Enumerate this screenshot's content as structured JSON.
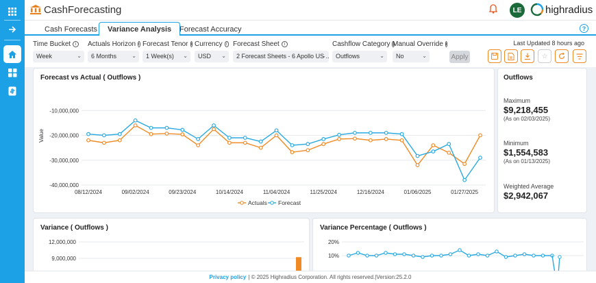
{
  "app": {
    "title": "CashForecasting"
  },
  "user": {
    "initials": "LE"
  },
  "brand": {
    "name": "highradius"
  },
  "tabs": [
    {
      "label": "Cash Forecasts"
    },
    {
      "label": "Variance Analysis"
    },
    {
      "label": "Forecast Accuracy"
    }
  ],
  "filters": {
    "time_bucket": {
      "label": "Time Bucket",
      "value": "Week"
    },
    "actuals_horizon": {
      "label": "Actuals Horizon",
      "value": "6 Months"
    },
    "forecast_tenor": {
      "label": "Forecast Tenor",
      "value": "1 Week(s)"
    },
    "currency": {
      "label": "Currency",
      "value": "USD"
    },
    "forecast_sheet": {
      "label": "Forecast Sheet",
      "value": "2 Forecast Sheets - 6 Apollo US ..."
    },
    "cashflow_category": {
      "label": "Cashflow Category",
      "value": "Outflows"
    },
    "manual_override": {
      "label": "Manual Override",
      "value": "No"
    },
    "apply_label": "Apply",
    "last_updated": "Last Updated 8 hours ago"
  },
  "main_chart": {
    "title": "Forecast vs Actual ( Outflows )",
    "legend_actuals": "Actuals",
    "legend_forecast": "Forecast"
  },
  "summary": {
    "heading": "Outflows",
    "maximum_label": "Maximum",
    "maximum_value": "$9,218,455",
    "maximum_note": "(As on 02/03/2025)",
    "minimum_label": "Minimum",
    "minimum_value": "$1,554,583",
    "minimum_note": "(As on 01/13/2025)",
    "weighted_label": "Weighted Average",
    "weighted_value": "$2,942,067"
  },
  "variance_panel": {
    "title": "Variance ( Outflows )"
  },
  "variance_pct_panel": {
    "title": "Variance Percentage ( Outflows )"
  },
  "footer": {
    "privacy": "Privacy policy",
    "text": "| © 2025 Highradius Corporation. All rights reserved.|Version:25.2.0"
  },
  "colors": {
    "accent": "#1da1e6",
    "actuals": "#f08a24",
    "forecast": "#2aaae2",
    "avatar": "#1b6b3a"
  },
  "chart_data": [
    {
      "type": "line",
      "title": "Forecast vs Actual ( Outflows )",
      "ylabel": "Value",
      "xlabel": "",
      "ylim": [
        -40000000,
        0
      ],
      "y_ticks": [
        "-10,000,000",
        "-20,000,000",
        "-30,000,000",
        "-40,000,000"
      ],
      "x_ticks": [
        "08/12/2024",
        "09/02/2024",
        "09/23/2024",
        "10/14/2024",
        "11/04/2024",
        "11/25/2024",
        "12/16/2024",
        "01/06/2025",
        "01/27/2025"
      ],
      "legend": "bottom",
      "series": [
        {
          "name": "Actuals",
          "values": [
            -22000000,
            -23000000,
            -22000000,
            -16000000,
            -19500000,
            -19300000,
            -19600000,
            -24000000,
            -17500000,
            -23000000,
            -23000000,
            -25000000,
            -20000000,
            -26800000,
            -26000000,
            -23500000,
            -21500000,
            -21300000,
            -22000000,
            -21500000,
            -22000000,
            -32000000,
            -24000000,
            -27000000,
            -31500000,
            -20000000
          ]
        },
        {
          "name": "Forecast",
          "values": [
            -19500000,
            -20000000,
            -19500000,
            -14000000,
            -17000000,
            -17000000,
            -17800000,
            -21500000,
            -16000000,
            -21000000,
            -21000000,
            -22500000,
            -18000000,
            -24000000,
            -23500000,
            -21500000,
            -19800000,
            -19000000,
            -19000000,
            -19000000,
            -19500000,
            -28300000,
            -26500000,
            -23500000,
            -38000000,
            -29000000
          ]
        }
      ]
    },
    {
      "type": "bar",
      "title": "Variance ( Outflows )",
      "y_ticks": [
        "12,000,000",
        "9,000,000"
      ],
      "values_note": "partially visible",
      "visible_last_value": 9218455
    },
    {
      "type": "line",
      "title": "Variance Percentage ( Outflows )",
      "y_ticks": [
        "20%",
        "10%"
      ],
      "series": [
        {
          "name": "",
          "values": [
            10,
            12,
            10,
            10,
            12,
            11,
            11,
            10,
            9,
            10,
            10,
            11,
            14,
            10,
            11,
            10,
            13,
            9,
            10,
            11,
            10,
            10,
            10
          ]
        }
      ]
    }
  ]
}
